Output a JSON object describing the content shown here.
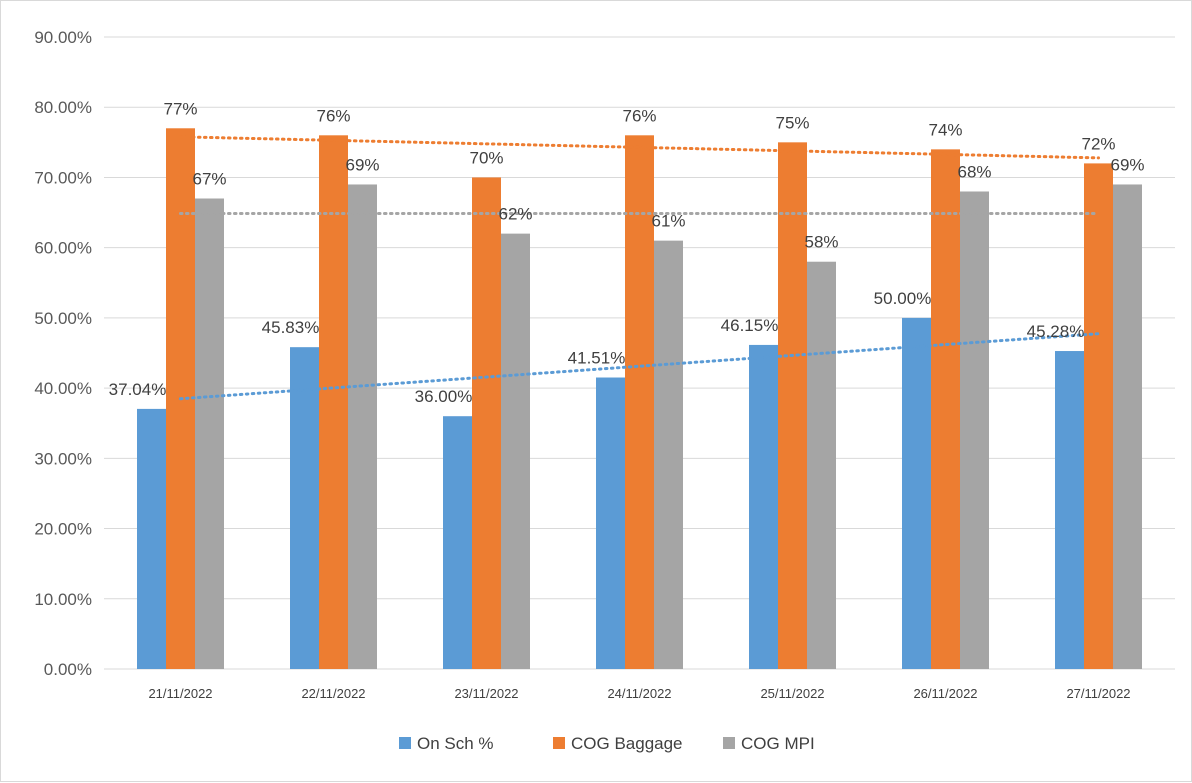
{
  "chart_data": {
    "type": "bar",
    "categories": [
      "21/11/2022",
      "22/11/2022",
      "23/11/2022",
      "24/11/2022",
      "25/11/2022",
      "26/11/2022",
      "27/11/2022"
    ],
    "ylim": [
      0,
      0.9
    ],
    "yticks": [
      0,
      0.1,
      0.2,
      0.3,
      0.4,
      0.5,
      0.6,
      0.7,
      0.8,
      0.9
    ],
    "ytick_labels": [
      "0.00%",
      "10.00%",
      "20.00%",
      "30.00%",
      "40.00%",
      "50.00%",
      "60.00%",
      "70.00%",
      "80.00%",
      "90.00%"
    ],
    "grid": true,
    "legend_position": "bottom",
    "series": [
      {
        "name": "On Sch %",
        "color": "#5b9bd5",
        "values": [
          0.3704,
          0.4583,
          0.36,
          0.4151,
          0.4615,
          0.5,
          0.4528
        ],
        "labels": [
          "37.04%",
          "45.83%",
          "36.00%",
          "41.51%",
          "46.15%",
          "50.00%",
          "45.28%"
        ],
        "trendline": "linear"
      },
      {
        "name": "COG Baggage",
        "color": "#ed7d31",
        "values": [
          0.77,
          0.76,
          0.7,
          0.76,
          0.75,
          0.74,
          0.72
        ],
        "labels": [
          "77%",
          "76%",
          "70%",
          "76%",
          "75%",
          "74%",
          "72%"
        ],
        "trendline": "linear"
      },
      {
        "name": "COG MPI",
        "color": "#a5a5a5",
        "values": [
          0.67,
          0.69,
          0.62,
          0.61,
          0.58,
          0.68,
          0.69
        ],
        "labels": [
          "67%",
          "69%",
          "62%",
          "61%",
          "58%",
          "68%",
          "69%"
        ],
        "trendline": "linear"
      }
    ]
  }
}
